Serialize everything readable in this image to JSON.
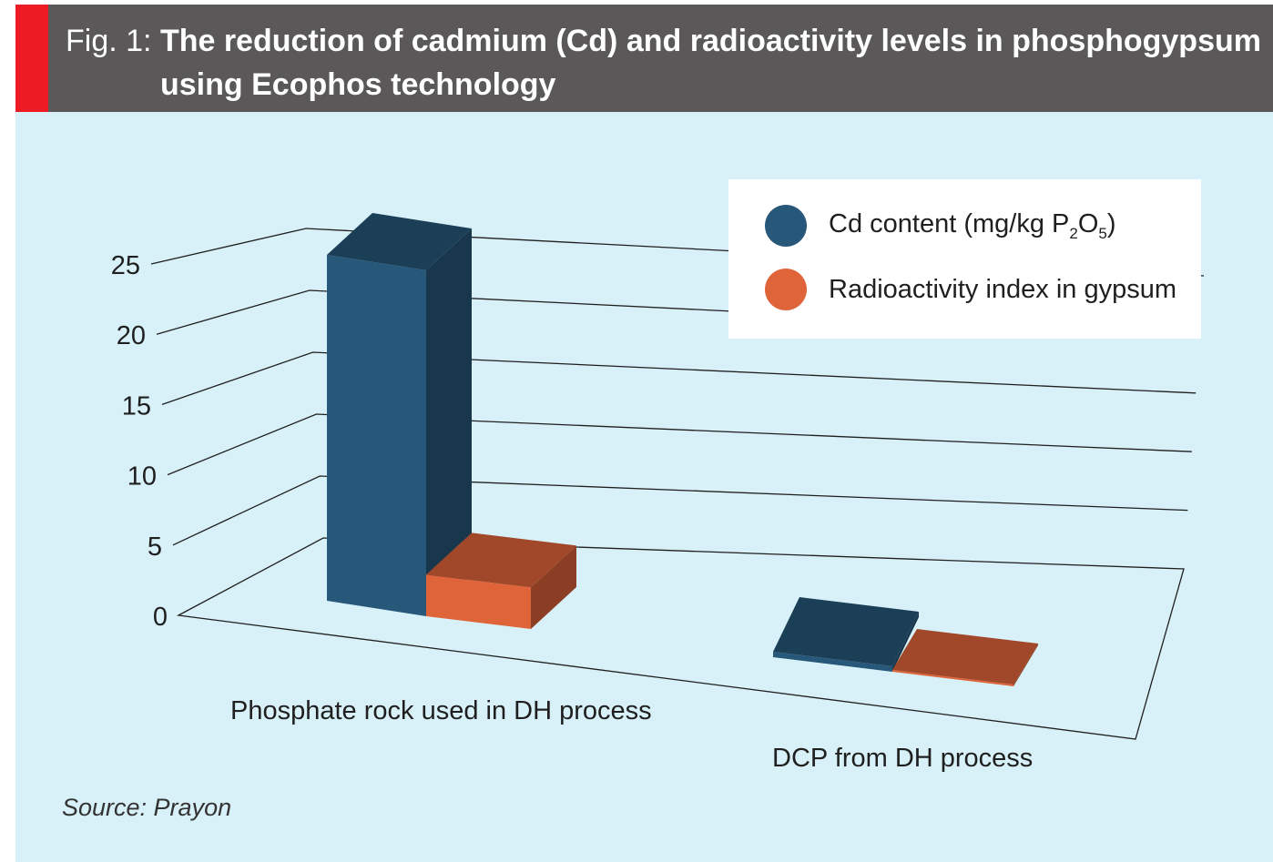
{
  "header": {
    "title_prefix": "Fig. 1:",
    "title_line1": "The reduction of cadmium (Cd) and radioactivity levels in phosphogypsum",
    "title_line2": "using Ecophos technology"
  },
  "legend": {
    "cd_label_main": "Cd content (mg/kg P",
    "cd_sub1": "2",
    "cd_mid": "O",
    "cd_sub2": "5",
    "cd_end": ")",
    "radio_label": "Radioactivity index in gypsum"
  },
  "source": "Source: Prayon",
  "colors": {
    "cd": "#27587a",
    "radio": "#e0643a",
    "header_bg": "#5a5858",
    "accent": "#ed1c24",
    "panel_bg": "#d8f1f9"
  },
  "chart_data": {
    "type": "bar",
    "title": "The reduction of cadmium (Cd) and radioactivity levels in phosphogypsum using Ecophos technology",
    "categories": [
      "Phosphate rock used in DH process",
      "DCP from DH process"
    ],
    "series": [
      {
        "name": "Cd content (mg/kg P2O5)",
        "values": [
          25,
          0.3
        ]
      },
      {
        "name": "Radioactivity index in gypsum",
        "values": [
          3,
          0.1
        ]
      }
    ],
    "yticks": [
      "0",
      "5",
      "10",
      "15",
      "20",
      "25"
    ],
    "ylim": [
      0,
      25
    ],
    "xlabel": "",
    "ylabel": ""
  }
}
